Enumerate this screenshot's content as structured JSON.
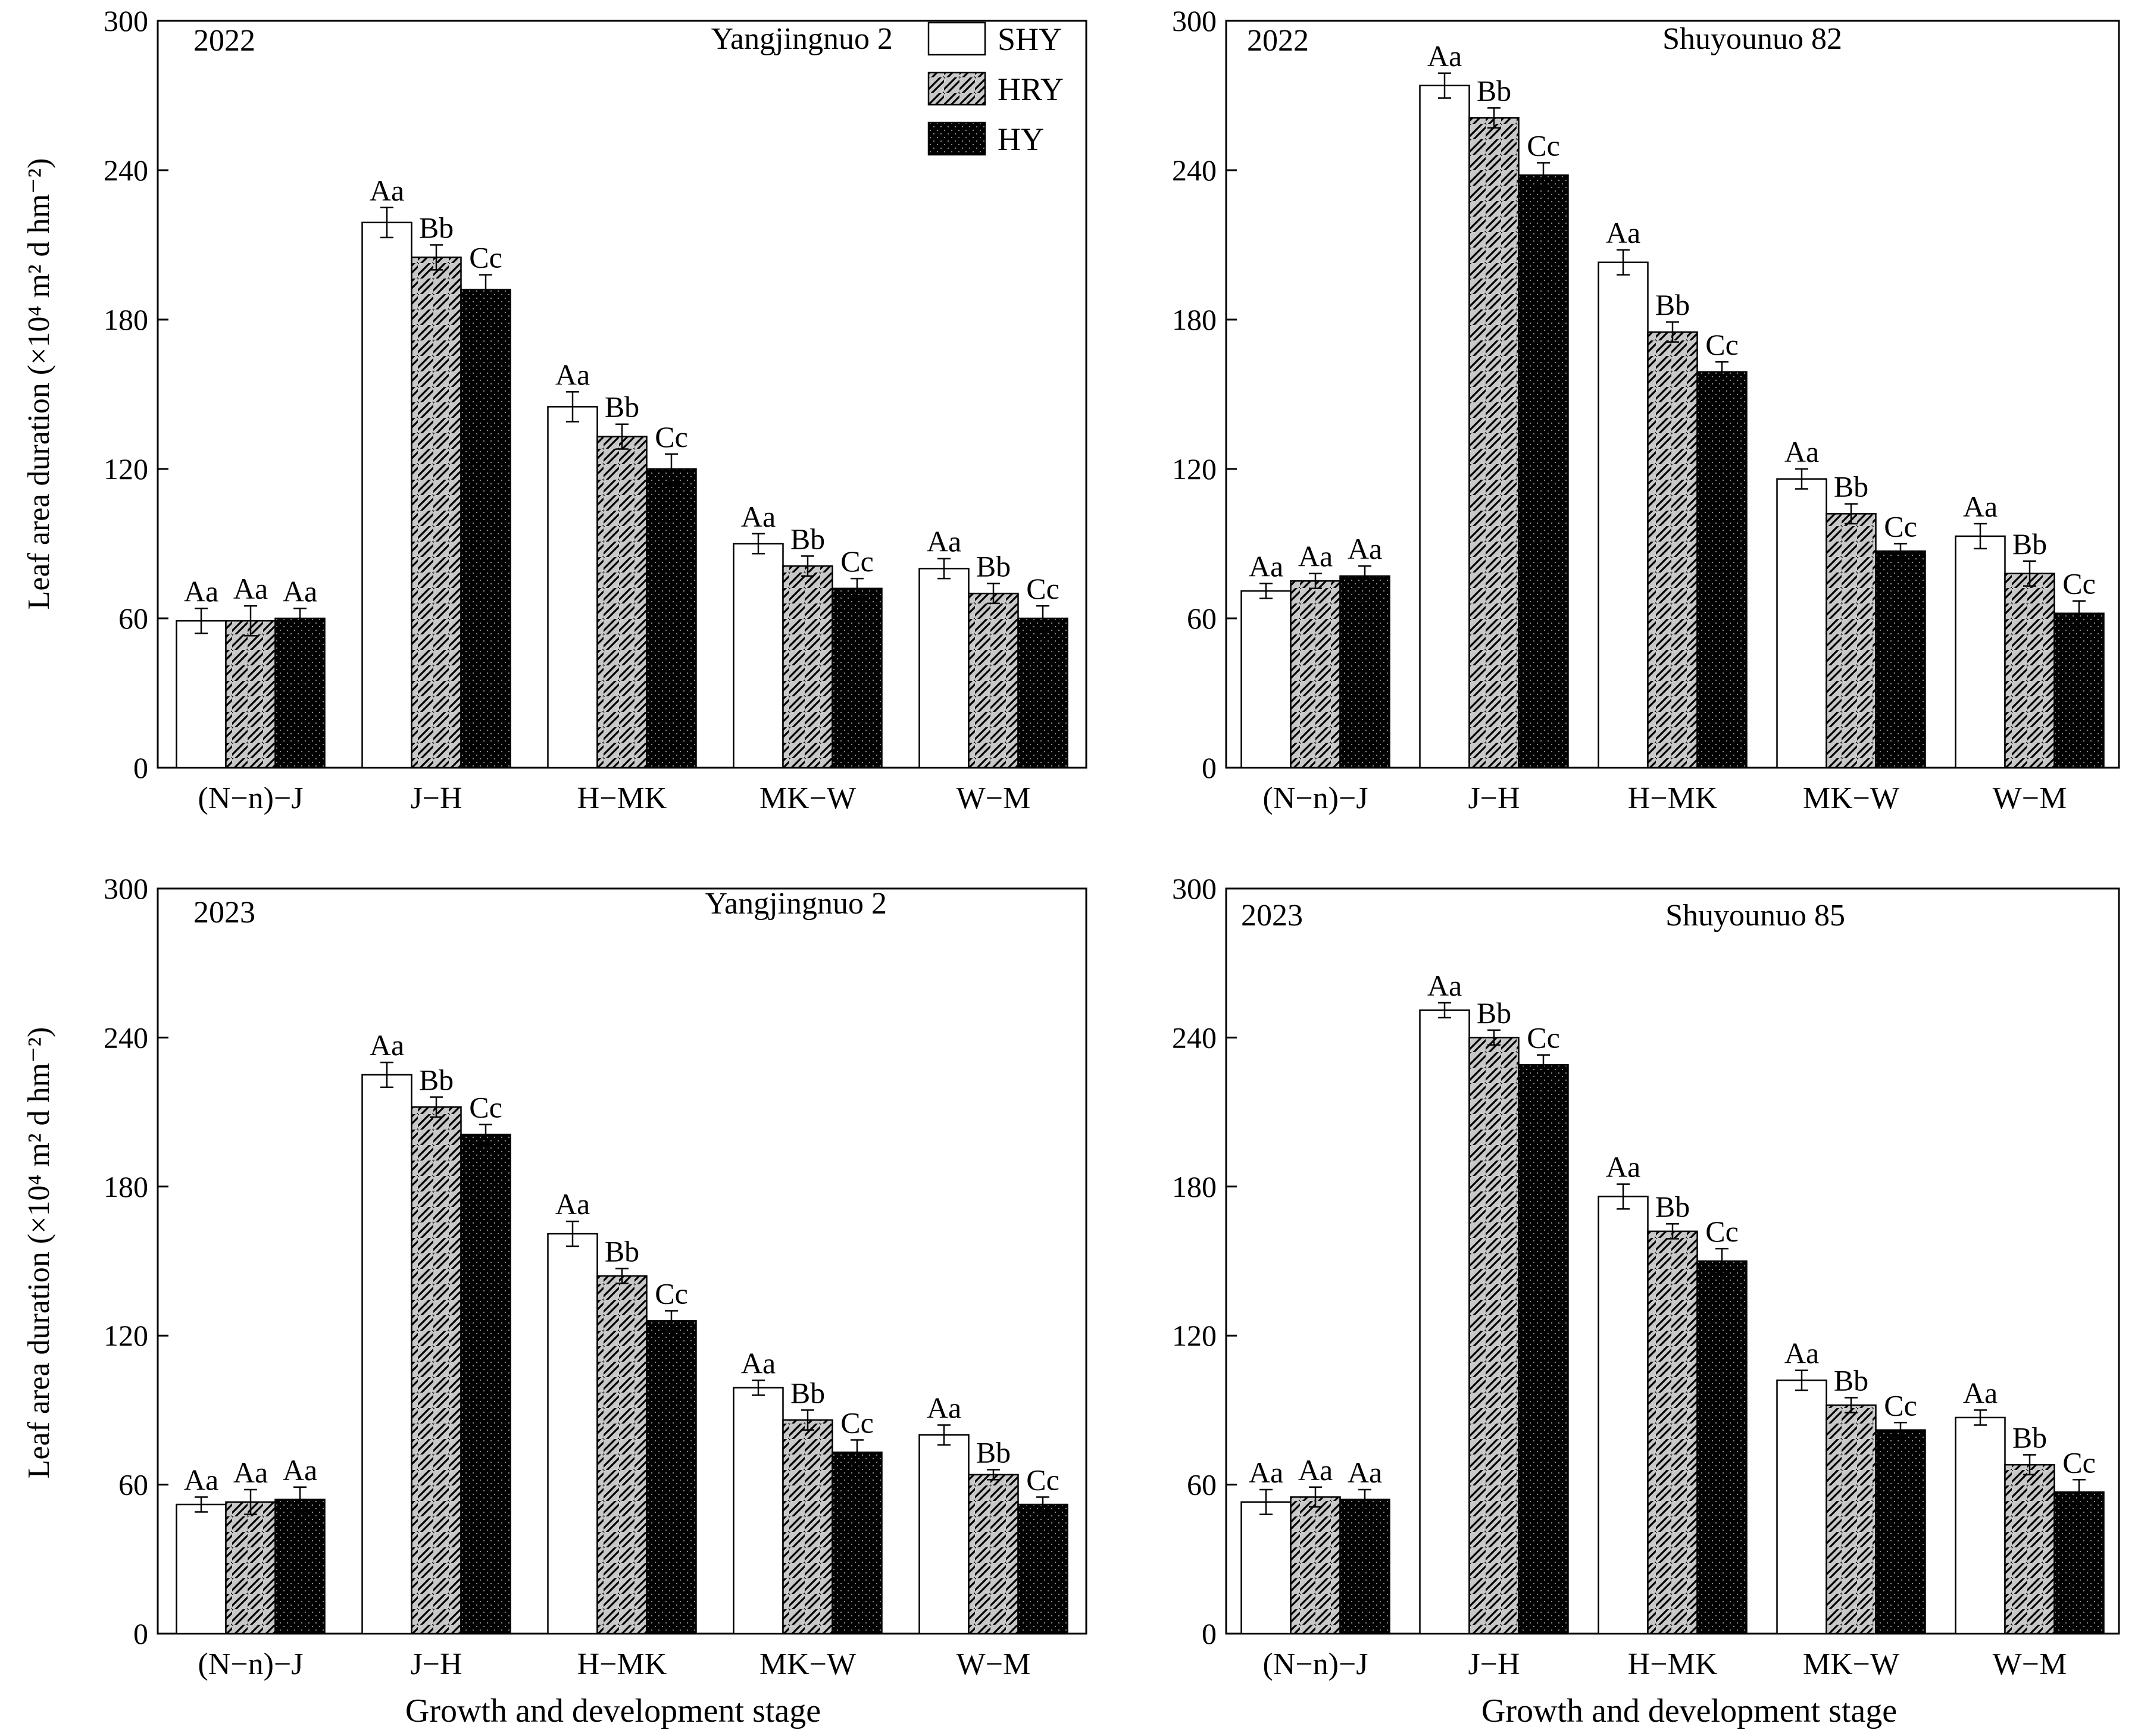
{
  "figure": {
    "y_axis_label": "Leaf area duration (×10⁴ m² d hm⁻²)",
    "x_axis_label": "Growth and development stage",
    "legend": [
      {
        "name": "SHY",
        "pattern": "white"
      },
      {
        "name": "HRY",
        "pattern": "hatch"
      },
      {
        "name": "HY",
        "pattern": "dots"
      }
    ]
  },
  "chart_data": [
    {
      "type": "bar",
      "year": "2022",
      "variety": "Yangjingnuo 2",
      "categories": [
        "(N−n)−J",
        "J−H",
        "H−MK",
        "MK−W",
        "W−M"
      ],
      "ylim": [
        0,
        300
      ],
      "yticks": [
        0,
        60,
        120,
        180,
        240,
        300
      ],
      "series": [
        {
          "name": "SHY",
          "values": [
            59,
            219,
            145,
            90,
            80
          ],
          "errors": [
            5,
            6,
            6,
            4,
            4
          ],
          "labels": [
            "Aa",
            "Aa",
            "Aa",
            "Aa",
            "Aa"
          ]
        },
        {
          "name": "HRY",
          "values": [
            59,
            205,
            133,
            81,
            70
          ],
          "errors": [
            6,
            5,
            5,
            4,
            4
          ],
          "labels": [
            "Aa",
            "Bb",
            "Bb",
            "Bb",
            "Bb"
          ]
        },
        {
          "name": "HY",
          "values": [
            60,
            192,
            120,
            72,
            60
          ],
          "errors": [
            4,
            6,
            6,
            4,
            5
          ],
          "labels": [
            "Aa",
            "Cc",
            "Cc",
            "Cc",
            "Cc"
          ]
        }
      ]
    },
    {
      "type": "bar",
      "year": "2022",
      "variety": "Shuyounuo 82",
      "categories": [
        "(N−n)−J",
        "J−H",
        "H−MK",
        "MK−W",
        "W−M"
      ],
      "ylim": [
        0,
        300
      ],
      "yticks": [
        0,
        60,
        120,
        180,
        240,
        300
      ],
      "series": [
        {
          "name": "SHY",
          "values": [
            71,
            274,
            203,
            116,
            93
          ],
          "errors": [
            3,
            5,
            5,
            4,
            5
          ],
          "labels": [
            "Aa",
            "Aa",
            "Aa",
            "Aa",
            "Aa"
          ]
        },
        {
          "name": "HRY",
          "values": [
            75,
            261,
            175,
            102,
            78
          ],
          "errors": [
            3,
            4,
            4,
            4,
            5
          ],
          "labels": [
            "Aa",
            "Bb",
            "Bb",
            "Bb",
            "Bb"
          ]
        },
        {
          "name": "HY",
          "values": [
            77,
            238,
            159,
            87,
            62
          ],
          "errors": [
            4,
            5,
            4,
            3,
            5
          ],
          "labels": [
            "Aa",
            "Cc",
            "Cc",
            "Cc",
            "Cc"
          ]
        }
      ]
    },
    {
      "type": "bar",
      "year": "2023",
      "variety": "Yangjingnuo 2",
      "categories": [
        "(N−n)−J",
        "J−H",
        "H−MK",
        "MK−W",
        "W−M"
      ],
      "ylim": [
        0,
        300
      ],
      "yticks": [
        0,
        60,
        120,
        180,
        240,
        300
      ],
      "series": [
        {
          "name": "SHY",
          "values": [
            52,
            225,
            161,
            99,
            80
          ],
          "errors": [
            3,
            5,
            5,
            3,
            4
          ],
          "labels": [
            "Aa",
            "Aa",
            "Aa",
            "Aa",
            "Aa"
          ]
        },
        {
          "name": "HRY",
          "values": [
            53,
            212,
            144,
            86,
            64
          ],
          "errors": [
            5,
            4,
            3,
            4,
            2
          ],
          "labels": [
            "Aa",
            "Bb",
            "Bb",
            "Bb",
            "Bb"
          ]
        },
        {
          "name": "HY",
          "values": [
            54,
            201,
            126,
            73,
            52
          ],
          "errors": [
            5,
            4,
            4,
            5,
            3
          ],
          "labels": [
            "Aa",
            "Cc",
            "Cc",
            "Cc",
            "Cc"
          ]
        }
      ]
    },
    {
      "type": "bar",
      "year": "2023",
      "variety": "Shuyounuo 85",
      "categories": [
        "(N−n)−J",
        "J−H",
        "H−MK",
        "MK−W",
        "W−M"
      ],
      "ylim": [
        0,
        300
      ],
      "yticks": [
        0,
        60,
        120,
        180,
        240,
        300
      ],
      "series": [
        {
          "name": "SHY",
          "values": [
            53,
            251,
            176,
            102,
            87
          ],
          "errors": [
            5,
            3,
            5,
            4,
            3
          ],
          "labels": [
            "Aa",
            "Aa",
            "Aa",
            "Aa",
            "Aa"
          ]
        },
        {
          "name": "HRY",
          "values": [
            55,
            240,
            162,
            92,
            68
          ],
          "errors": [
            4,
            3,
            3,
            3,
            4
          ],
          "labels": [
            "Aa",
            "Bb",
            "Bb",
            "Bb",
            "Bb"
          ]
        },
        {
          "name": "HY",
          "values": [
            54,
            229,
            150,
            82,
            57
          ],
          "errors": [
            4,
            4,
            5,
            3,
            5
          ],
          "labels": [
            "Aa",
            "Cc",
            "Cc",
            "Cc",
            "Cc"
          ]
        }
      ]
    }
  ]
}
